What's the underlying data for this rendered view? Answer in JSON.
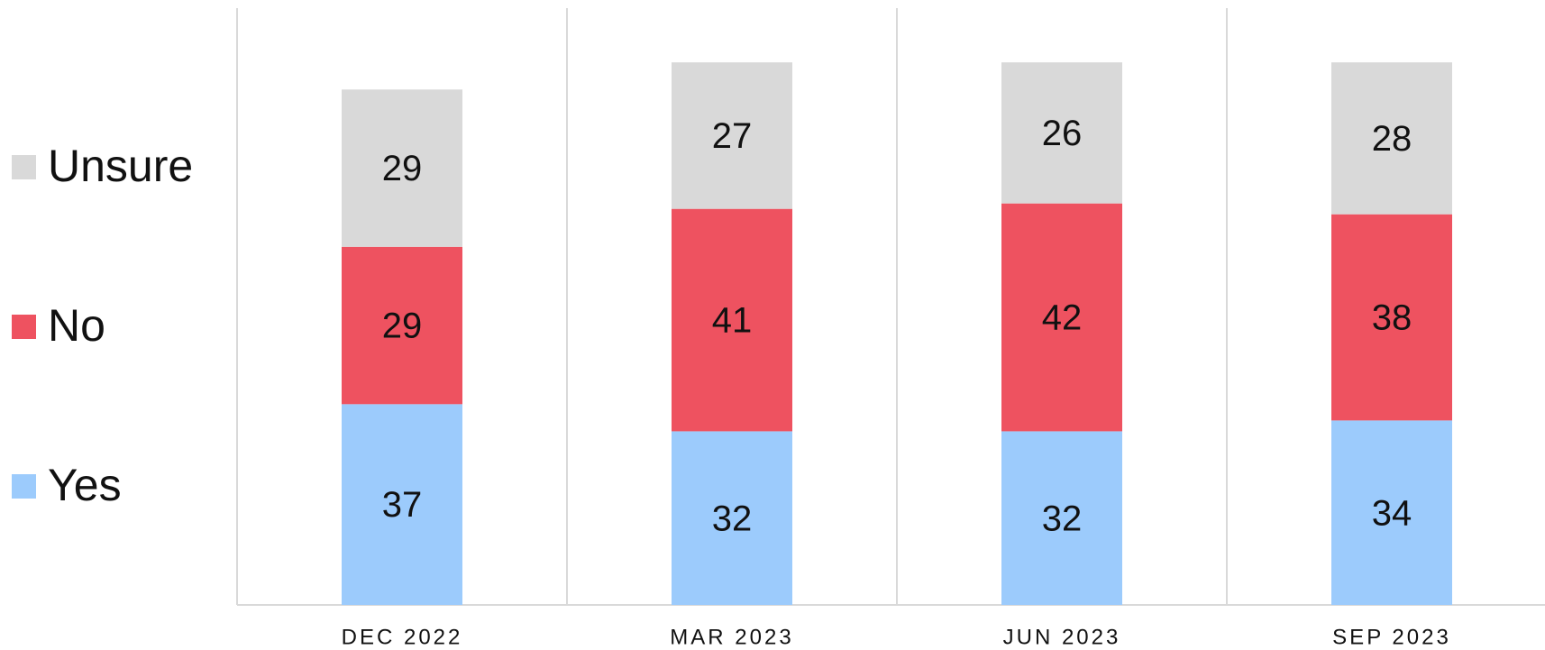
{
  "chart_data": {
    "type": "stacked_bar",
    "categories": [
      "DEC 2022",
      "MAR 2023",
      "JUN 2023",
      "SEP 2023"
    ],
    "series": [
      {
        "name": "Yes",
        "color": "#9ccbfc",
        "values": [
          37,
          32,
          32,
          34
        ]
      },
      {
        "name": "No",
        "color": "#ee5260",
        "values": [
          29,
          41,
          42,
          38
        ]
      },
      {
        "name": "Unsure",
        "color": "#d9d9d9",
        "values": [
          29,
          27,
          26,
          28
        ]
      }
    ],
    "ylim": [
      0,
      110
    ]
  }
}
